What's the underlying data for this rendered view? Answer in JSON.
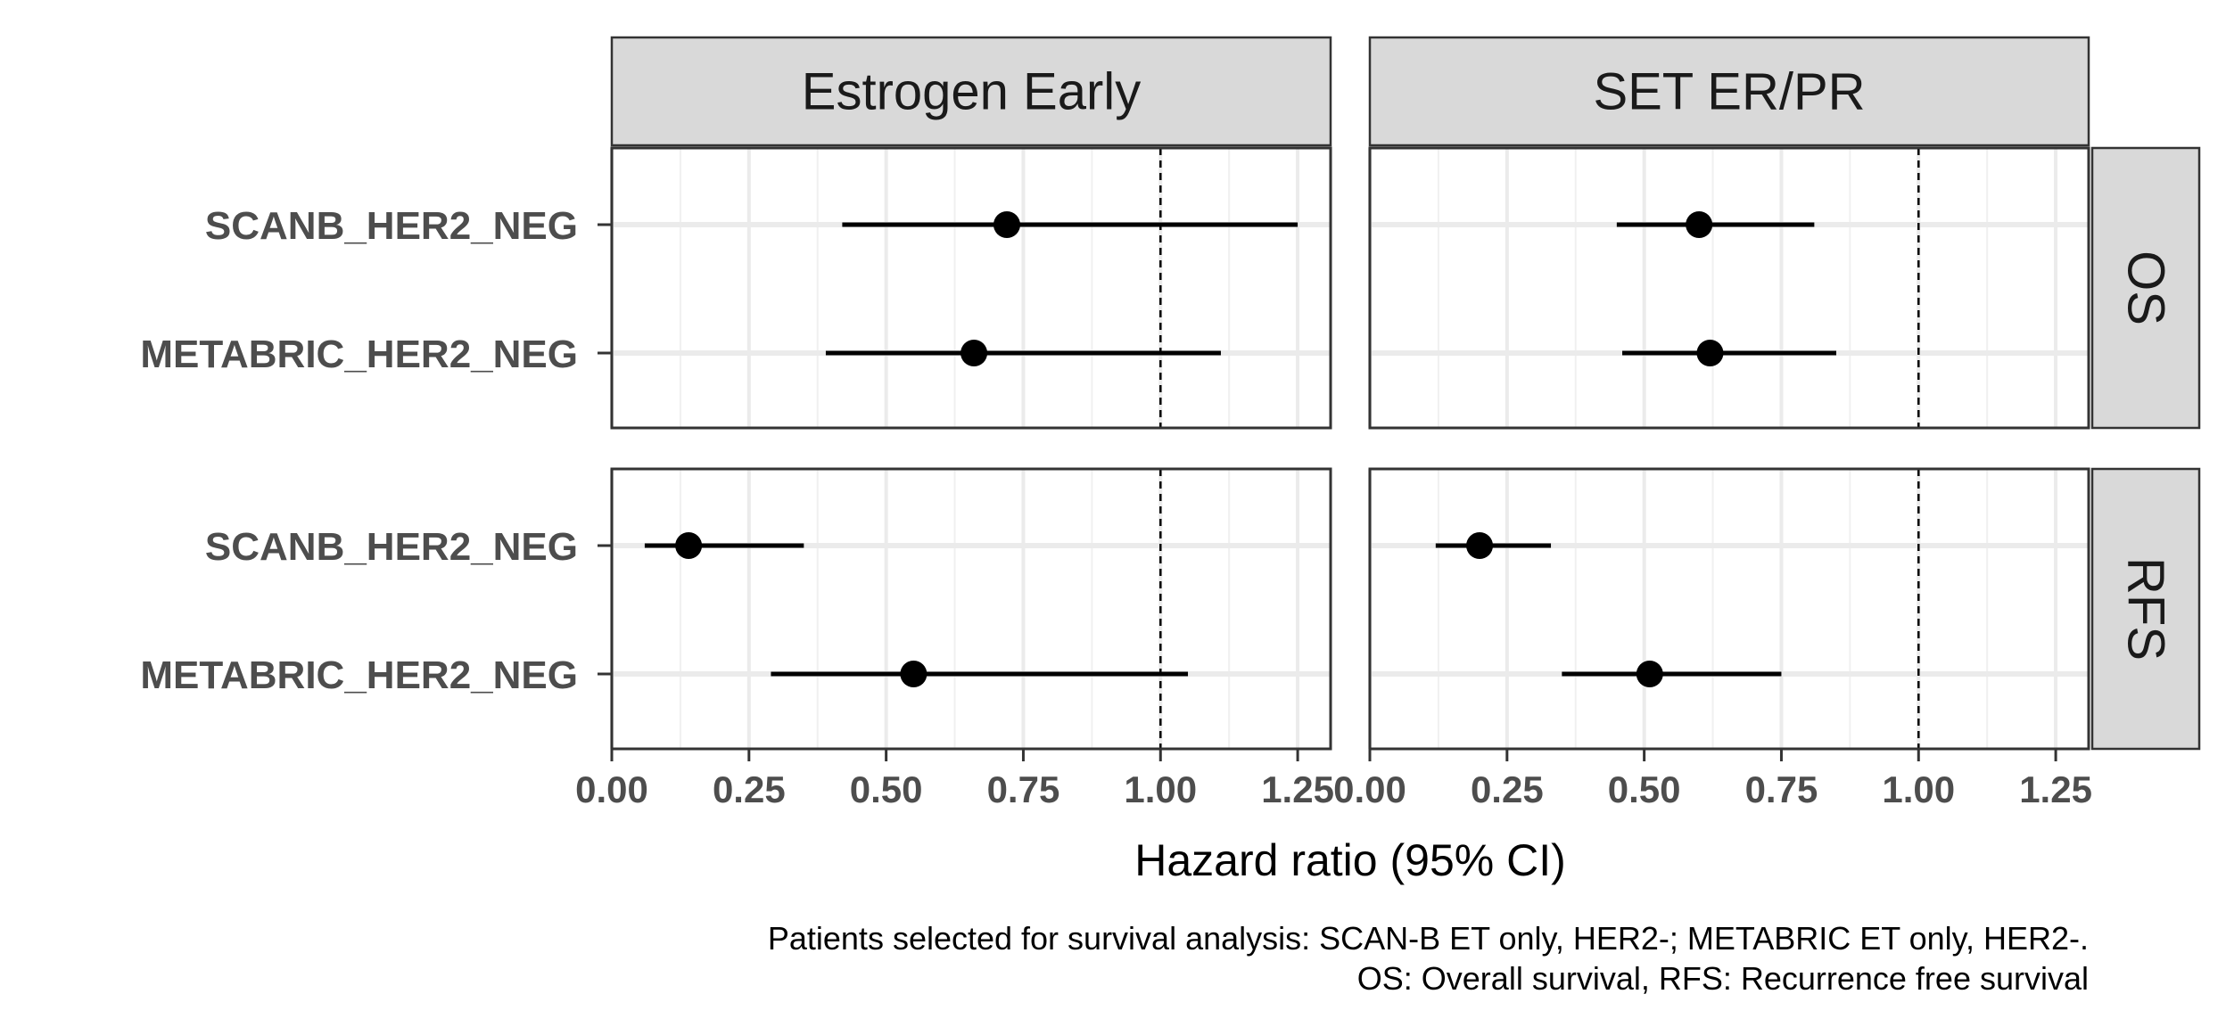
{
  "chart_data": {
    "type": "forest",
    "xlabel": "Hazard ratio (95% CI)",
    "xlim": [
      0,
      1.31
    ],
    "x_ticks": [
      0,
      0.25,
      0.5,
      0.75,
      1.0,
      1.25
    ],
    "x_tick_labels": [
      "0.00",
      "0.25",
      "0.50",
      "0.75",
      "1.00",
      "1.25"
    ],
    "reference_line": 1.0,
    "grid": true,
    "caption_lines": [
      "Patients selected for survival analysis: SCAN-B ET only, HER2-; METABRIC ET only, HER2-.",
      "OS: Overall survival, RFS: Recurrence free survival"
    ],
    "columns": [
      "Estrogen Early",
      "SET ER/PR"
    ],
    "rows": [
      "OS",
      "RFS"
    ],
    "categories": [
      "SCANB_HER2_NEG",
      "METABRIC_HER2_NEG"
    ],
    "panels": [
      {
        "column": "Estrogen Early",
        "row": "OS",
        "estimates": [
          {
            "label": "SCANB_HER2_NEG",
            "hr": 0.72,
            "lower": 0.42,
            "upper": 1.25
          },
          {
            "label": "METABRIC_HER2_NEG",
            "hr": 0.66,
            "lower": 0.39,
            "upper": 1.11
          }
        ]
      },
      {
        "column": "SET ER/PR",
        "row": "OS",
        "estimates": [
          {
            "label": "SCANB_HER2_NEG",
            "hr": 0.6,
            "lower": 0.45,
            "upper": 0.81
          },
          {
            "label": "METABRIC_HER2_NEG",
            "hr": 0.62,
            "lower": 0.46,
            "upper": 0.85
          }
        ]
      },
      {
        "column": "Estrogen Early",
        "row": "RFS",
        "estimates": [
          {
            "label": "SCANB_HER2_NEG",
            "hr": 0.14,
            "lower": 0.06,
            "upper": 0.35
          },
          {
            "label": "METABRIC_HER2_NEG",
            "hr": 0.55,
            "lower": 0.29,
            "upper": 1.05
          }
        ]
      },
      {
        "column": "SET ER/PR",
        "row": "RFS",
        "estimates": [
          {
            "label": "SCANB_HER2_NEG",
            "hr": 0.2,
            "lower": 0.12,
            "upper": 0.33
          },
          {
            "label": "METABRIC_HER2_NEG",
            "hr": 0.51,
            "lower": 0.35,
            "upper": 0.75
          }
        ]
      }
    ]
  }
}
